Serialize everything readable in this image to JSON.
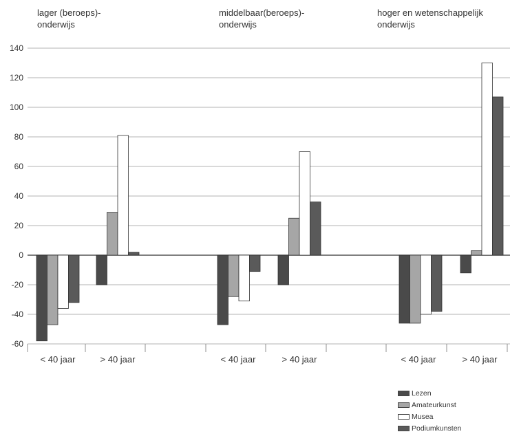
{
  "chart_data": {
    "type": "bar",
    "panels": [
      {
        "title": "lager (beroeps)-\nonderwijs",
        "groups": [
          {
            "label": "< 40 jaar",
            "values": [
              -58,
              -47,
              -36,
              -32
            ]
          },
          {
            "label": "> 40 jaar",
            "values": [
              -20,
              29,
              81,
              2
            ]
          }
        ]
      },
      {
        "title": "middelbaar(beroeps)-\nonderwijs",
        "groups": [
          {
            "label": "< 40 jaar",
            "values": [
              -47,
              -28,
              -31,
              -11
            ]
          },
          {
            "label": "> 40 jaar",
            "values": [
              -20,
              25,
              70,
              36
            ]
          }
        ]
      },
      {
        "title": "hoger en wetenschappelijk\nonderwijs",
        "groups": [
          {
            "label": "< 40 jaar",
            "values": [
              -46,
              -46,
              -40,
              -38
            ]
          },
          {
            "label": "> 40 jaar",
            "values": [
              -12,
              3,
              130,
              107
            ]
          }
        ]
      }
    ],
    "series": [
      {
        "name": "Lezen",
        "color": "#4a4a4a"
      },
      {
        "name": "Amateurkunst",
        "color": "#a6a6a6"
      },
      {
        "name": "Musea",
        "color": "#ffffff"
      },
      {
        "name": "Podiumkunsten",
        "color": "#5a5a5a"
      }
    ],
    "ylim": [
      -60,
      140
    ],
    "yticks": [
      140,
      120,
      100,
      80,
      60,
      40,
      20,
      0,
      -20,
      -40,
      -60
    ],
    "grid": true,
    "legend_position": "bottom-right"
  }
}
